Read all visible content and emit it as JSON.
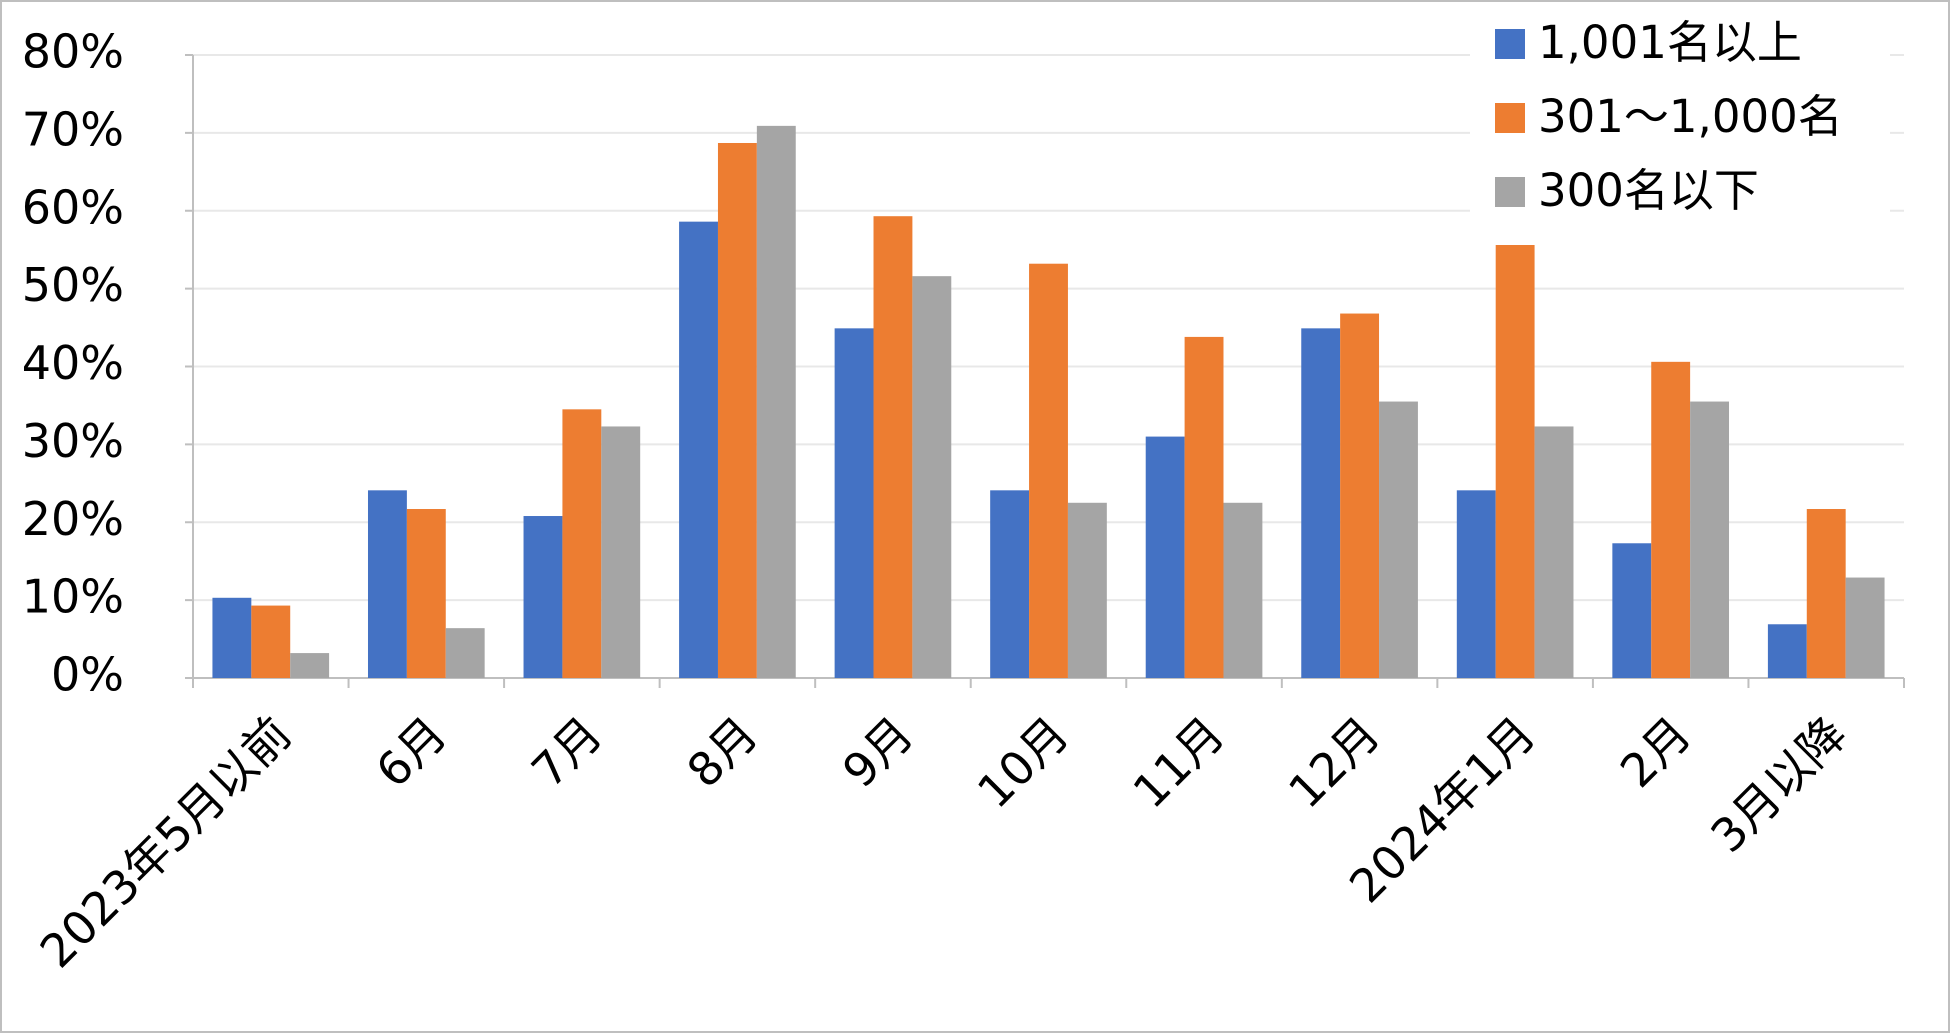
{
  "chart_data": {
    "type": "bar",
    "categories": [
      "2023年5月以前",
      "6月",
      "7月",
      "8月",
      "9月",
      "10月",
      "11月",
      "12月",
      "2024年1月",
      "2月",
      "3月以降"
    ],
    "series": [
      {
        "name": "1,001名以上",
        "color": "#4472c4",
        "values": [
          10.3,
          24.1,
          20.8,
          58.6,
          44.9,
          24.1,
          31.0,
          44.9,
          24.1,
          17.3,
          6.9
        ]
      },
      {
        "name": "301～1,000名",
        "color": "#ed7d31",
        "values": [
          9.3,
          21.7,
          34.5,
          68.7,
          59.3,
          53.2,
          43.8,
          46.8,
          56.4,
          40.6,
          21.7
        ]
      },
      {
        "name": "300名以下",
        "color": "#a5a5a5",
        "values": [
          3.2,
          6.4,
          32.3,
          70.9,
          51.6,
          22.5,
          22.5,
          35.5,
          32.3,
          35.5,
          12.9
        ]
      }
    ],
    "ylim": [
      0,
      80
    ],
    "yticks": [
      {
        "value": 0,
        "label": "0%"
      },
      {
        "value": 10,
        "label": "10%"
      },
      {
        "value": 20,
        "label": "20%"
      },
      {
        "value": 30,
        "label": "30%"
      },
      {
        "value": 40,
        "label": "40%"
      },
      {
        "value": 50,
        "label": "50%"
      },
      {
        "value": 60,
        "label": "60%"
      },
      {
        "value": 70,
        "label": "70%"
      },
      {
        "value": 80,
        "label": "80%"
      }
    ],
    "grid": true,
    "legend": "upper right"
  }
}
